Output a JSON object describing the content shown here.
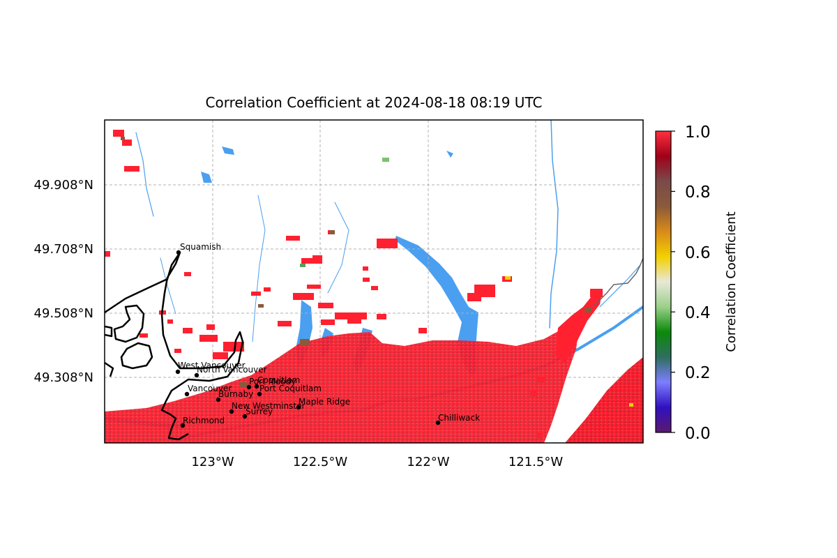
{
  "figure": {
    "title": "Correlation Coefficient at 2024-08-18 08:19 UTC"
  },
  "map": {
    "lat_ticks": [
      "49.908°N",
      "49.708°N",
      "49.508°N",
      "49.308°N"
    ],
    "lon_ticks": [
      "123°W",
      "122.5°W",
      "122°W",
      "121.5°W"
    ],
    "gridlines": true,
    "cities": [
      {
        "name": "Squamish"
      },
      {
        "name": "West Vancouver"
      },
      {
        "name": "North Vancouver"
      },
      {
        "name": "Vancouver"
      },
      {
        "name": "Burnaby"
      },
      {
        "name": "Port Moody"
      },
      {
        "name": "Coquitlam"
      },
      {
        "name": "Port Coquitlam"
      },
      {
        "name": "New Westminster"
      },
      {
        "name": "Surrey"
      },
      {
        "name": "Richmond"
      },
      {
        "name": "Maple Ridge"
      },
      {
        "name": "Chilliwack"
      }
    ],
    "colors": {
      "high_cc": "#ff1f2e",
      "water": "#4a9ff0",
      "coast": "#000000",
      "border": "#666666"
    }
  },
  "colorbar": {
    "label": "Correlation Coefficient",
    "ticks": [
      "0.0",
      "0.2",
      "0.4",
      "0.6",
      "0.8",
      "1.0"
    ],
    "stops": [
      "#5a1a6e",
      "#3010c0",
      "#7e7eff",
      "#2e6e5e",
      "#0a8a0a",
      "#9bd08a",
      "#e8e8d8",
      "#f2d000",
      "#d98a1a",
      "#8a5a3a",
      "#7a4a4a",
      "#a00018",
      "#ff3040"
    ]
  }
}
